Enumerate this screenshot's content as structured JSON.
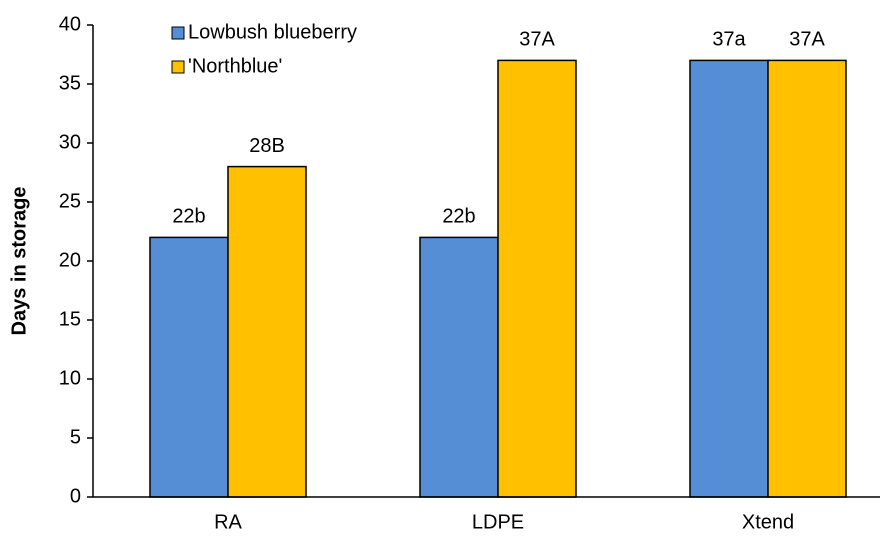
{
  "chart_data": {
    "type": "bar",
    "y_label": "Days in storage",
    "categories": [
      "RA",
      "LDPE",
      "Xtend"
    ],
    "series": [
      {
        "name": "Lowbush blueberry",
        "color": "#558ed5",
        "values": [
          22,
          22,
          37
        ],
        "value_labels": [
          "22b",
          "22b",
          "37a"
        ]
      },
      {
        "name": "'Northblue'",
        "color": "#ffc000",
        "values": [
          28,
          37,
          37
        ],
        "value_labels": [
          "28B",
          "37A",
          "37A"
        ]
      }
    ],
    "ylim": [
      0,
      40
    ],
    "yticks": [
      0,
      5,
      10,
      15,
      20,
      25,
      30,
      35,
      40
    ],
    "legend": "top-left",
    "grid": false
  }
}
